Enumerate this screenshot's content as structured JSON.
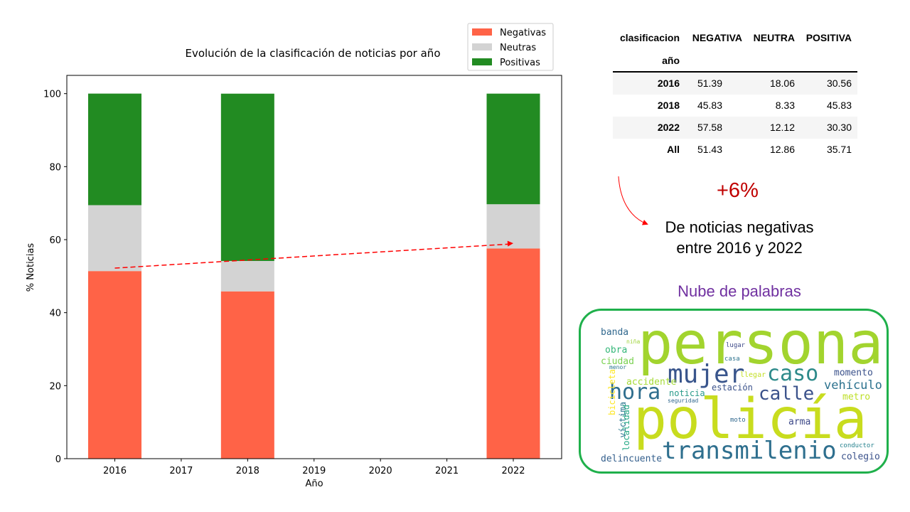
{
  "chart_data": {
    "type": "bar",
    "stacked": true,
    "title": "Evolución de la clasificación de noticias por año",
    "xlabel": "Año",
    "ylabel": "% Noticias",
    "x_ticks": [
      "2016",
      "2017",
      "2018",
      "2019",
      "2020",
      "2021",
      "2022"
    ],
    "y_ticks": [
      "0",
      "20",
      "40",
      "60",
      "80",
      "100"
    ],
    "ylim": [
      0,
      105
    ],
    "categories": [
      "2016",
      "2018",
      "2022"
    ],
    "series": [
      {
        "name": "Negativas",
        "color": "#ff6347",
        "values": [
          51.39,
          45.83,
          57.58
        ]
      },
      {
        "name": "Neutras",
        "color": "#d3d3d3",
        "values": [
          18.06,
          8.33,
          12.12
        ]
      },
      {
        "name": "Positivas",
        "color": "#228b22",
        "values": [
          30.56,
          45.83,
          30.3
        ]
      }
    ],
    "trend_line": {
      "color": "#ff0000",
      "style": "dashed",
      "from": {
        "x": "2016",
        "y": 52.2
      },
      "to": {
        "x": "2022",
        "y": 59
      }
    },
    "legend_position": "top-right",
    "grid": false
  },
  "table": {
    "header_label": "clasificacion",
    "index_label": "año",
    "columns": [
      "NEGATIVA",
      "NEUTRA",
      "POSITIVA"
    ],
    "rows": [
      {
        "label": "2016",
        "values": [
          "51.39",
          "18.06",
          "30.56"
        ]
      },
      {
        "label": "2018",
        "values": [
          "45.83",
          "8.33",
          "45.83"
        ]
      },
      {
        "label": "2022",
        "values": [
          "57.58",
          "12.12",
          "30.30"
        ]
      },
      {
        "label": "All",
        "values": [
          "51.43",
          "12.86",
          "35.71"
        ]
      }
    ]
  },
  "annotation": {
    "delta": "+6%",
    "line1": "De noticias negativas",
    "line2": "entre 2016 y 2022",
    "delta_color": "#c00000",
    "arrow_color": "#ff0000"
  },
  "wordcloud": {
    "title": "Nube de palabras",
    "title_color": "#7030a0",
    "border_color": "#1fb04b",
    "words": [
      {
        "text": "persona",
        "color": "#a2d42e"
      },
      {
        "text": "policía",
        "color": "#c8dc1e"
      },
      {
        "text": "transmilenio",
        "color": "#2e6f8e"
      },
      {
        "text": "mujer",
        "color": "#39558c"
      },
      {
        "text": "caso",
        "color": "#2d8a8a"
      },
      {
        "text": "hora",
        "color": "#2f6e8e"
      },
      {
        "text": "calle",
        "color": "#3b528b"
      },
      {
        "text": "vehículo",
        "color": "#2c728e"
      },
      {
        "text": "momento",
        "color": "#3b528b"
      },
      {
        "text": "banda",
        "color": "#31688e"
      },
      {
        "text": "niña",
        "color": "#9fd43a"
      },
      {
        "text": "obra",
        "color": "#35b779"
      },
      {
        "text": "ciudad",
        "color": "#7ad151"
      },
      {
        "text": "menor",
        "color": "#2a788e"
      },
      {
        "text": "lugar",
        "color": "#3e4a89"
      },
      {
        "text": "casa",
        "color": "#2c728e"
      },
      {
        "text": "llegar",
        "color": "#c2df23"
      },
      {
        "text": "accidente",
        "color": "#a5db36"
      },
      {
        "text": "noticia",
        "color": "#2a9b8a"
      },
      {
        "text": "estación",
        "color": "#3b528b"
      },
      {
        "text": "seguridad",
        "color": "#31688e"
      },
      {
        "text": "metro",
        "color": "#bddf26"
      },
      {
        "text": "bicicleta",
        "color": "#fde725"
      },
      {
        "text": "víctima",
        "color": "#2a768e"
      },
      {
        "text": "localidad",
        "color": "#22a884"
      },
      {
        "text": "moto",
        "color": "#31688e"
      },
      {
        "text": "arma",
        "color": "#3e4a89"
      },
      {
        "text": "conductor",
        "color": "#26828e"
      },
      {
        "text": "colegio",
        "color": "#3b528b"
      },
      {
        "text": "delincuente",
        "color": "#35608d"
      }
    ]
  }
}
